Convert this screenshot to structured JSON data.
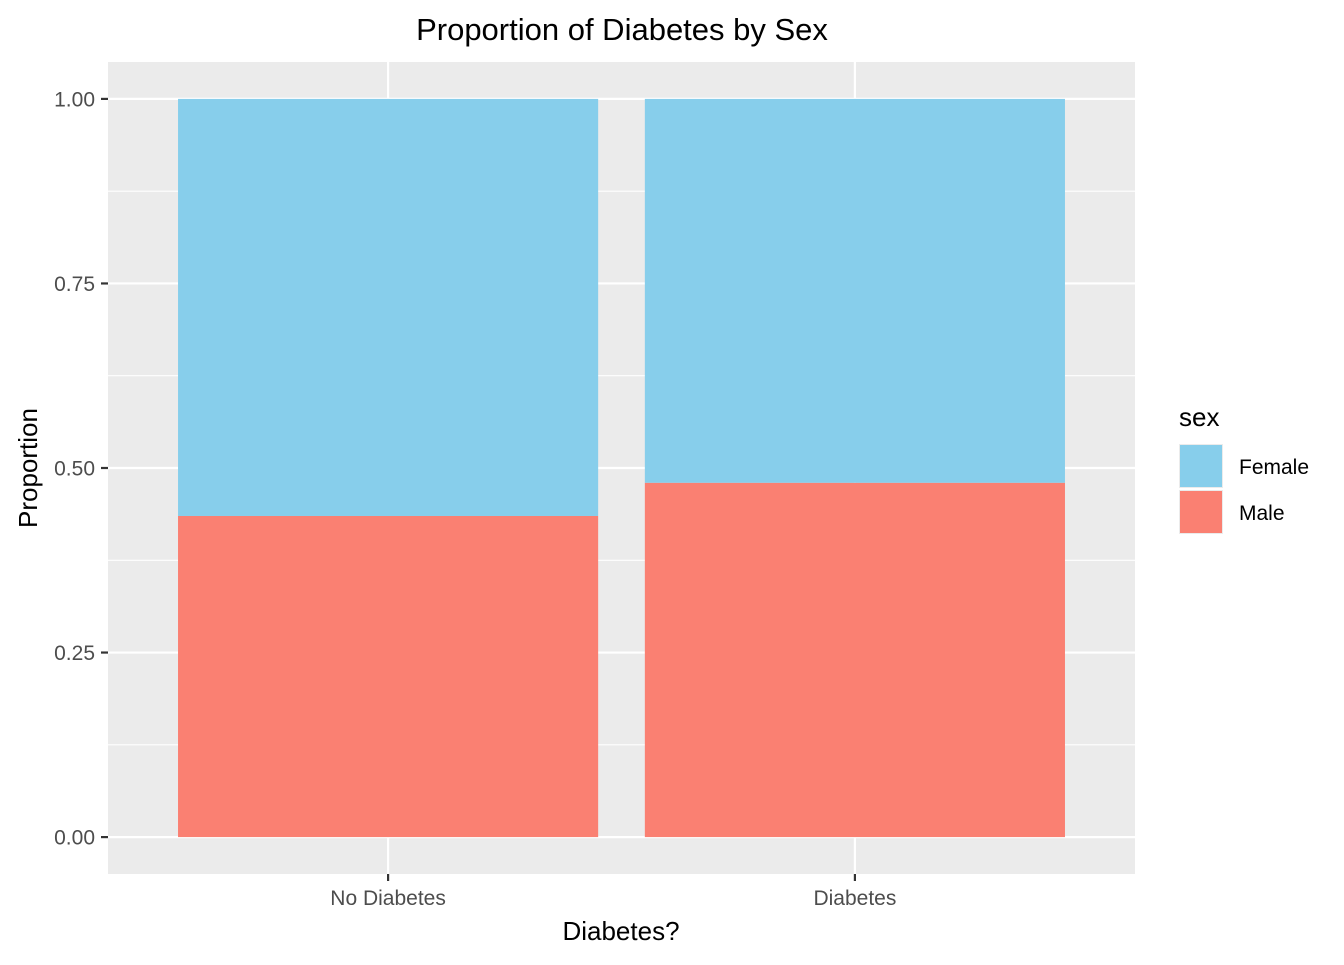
{
  "chart_data": {
    "type": "bar",
    "stacked": true,
    "title": "Proportion of Diabetes by Sex",
    "xlabel": "Diabetes?",
    "ylabel": "Proportion",
    "categories": [
      "No Diabetes",
      "Diabetes"
    ],
    "series": [
      {
        "name": "Female",
        "values": [
          0.565,
          0.52
        ],
        "color": "#87CEEB"
      },
      {
        "name": "Male",
        "values": [
          0.435,
          0.48
        ],
        "color": "#FA8072"
      }
    ],
    "ylim": [
      -0.05,
      1.05
    ],
    "yticks": [
      0,
      0.25,
      0.5,
      0.75,
      1.0
    ],
    "ytick_labels": [
      "0.00",
      "0.25",
      "0.50",
      "0.75",
      "1.00"
    ],
    "grid": true,
    "legend": {
      "title": "sex",
      "placement": "right",
      "entries": [
        "Female",
        "Male"
      ]
    }
  },
  "colors": {
    "panel_background": "#EBEBEB",
    "grid_major": "#FFFFFF",
    "tick_text": "#4D4D4D",
    "tick_mark": "#333333"
  }
}
